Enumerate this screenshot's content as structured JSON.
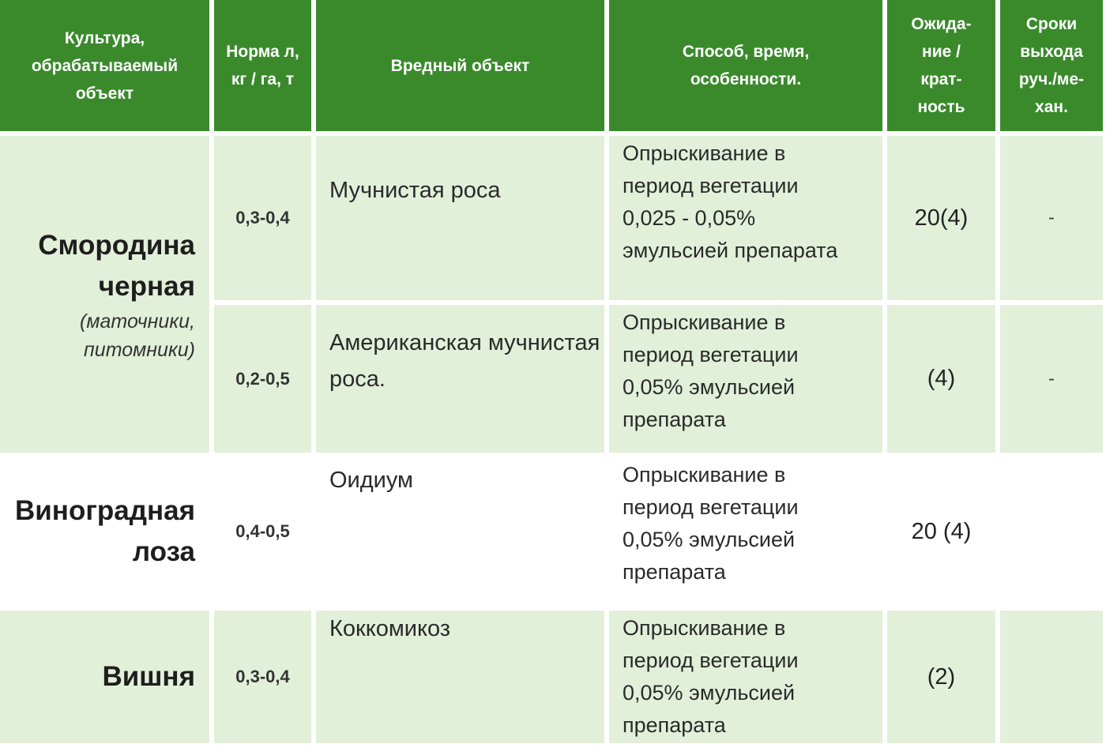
{
  "header": {
    "crop": "Культура, обрабатываемый объект",
    "rate": "Норма л, кг / га, т",
    "pest": "Вредный объект",
    "method": "Способ, время, особенности.",
    "wait": "Ожида-ние /крат-ность",
    "exit": "Сроки выхода руч./ме-хан."
  },
  "rows": [
    {
      "crop": "Смородина черная",
      "crop_note": "(маточники, питомники)",
      "rate": "0,3-0,4",
      "pest": "Мучнистая роса",
      "method": "Опрыскивание в\nпериод вегетации\n0,025 - 0,05%\nэмульсией препарата",
      "wait": "20(4)",
      "exit": "-"
    },
    {
      "rate": "0,2-0,5",
      "pest": "Американская мучнистая роса.",
      "method": "Опрыскивание в\nпериод вегетации\n0,05% эмульсией\nпрепарата",
      "wait": "(4)",
      "exit": "-"
    },
    {
      "crop": "Виноградная лоза",
      "rate": "0,4-0,5",
      "pest": "Оидиум",
      "method": "Опрыскивание в\nпериод вегетации\n0,05% эмульсией\nпрепарата",
      "wait": "20 (4)",
      "exit": ""
    },
    {
      "crop": "Вишня",
      "rate": "0,3-0,4",
      "pest": "Коккомикоз",
      "method": "Опрыскивание в\nпериод вегетации\n0,05% эмульсией\nпрепарата",
      "wait": "(2)",
      "exit": ""
    }
  ],
  "colors": {
    "header_bg": "#3a8a2c",
    "row_light_green": "#e2f0da",
    "row_white": "#ffffff"
  }
}
